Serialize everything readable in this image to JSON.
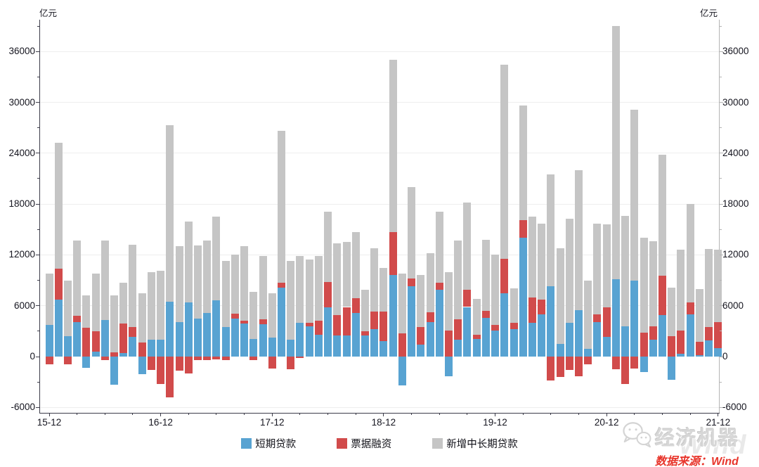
{
  "units": {
    "left": "亿元",
    "right": "亿元"
  },
  "footer": {
    "brand": "经济机器",
    "brand_icon": "wechat-bubbles-icon",
    "watermark": "Wind",
    "source": "数据来源：Wind"
  },
  "legend": [
    {
      "label": "短期贷款",
      "color": "#58a3d2"
    },
    {
      "label": "票据融资",
      "color": "#d14b4b"
    },
    {
      "label": "新增中长期贷款",
      "color": "#c5c5c5"
    }
  ],
  "chart_data": {
    "type": "bar",
    "stacked": true,
    "title": "",
    "xlabel": "",
    "ylabel": "亿元",
    "grid": true,
    "legend_position": "bottom",
    "ylim": [
      -6500,
      40000
    ],
    "y_ticks": [
      -6000,
      0,
      6000,
      12000,
      18000,
      24000,
      30000,
      36000
    ],
    "y_minor_step": 3000,
    "x_tick_labels": [
      "15-12",
      "16-12",
      "17-12",
      "18-12",
      "19-12",
      "20-12",
      "21-12"
    ],
    "x": [
      "2015-12",
      "2016-01",
      "2016-02",
      "2016-03",
      "2016-04",
      "2016-05",
      "2016-06",
      "2016-07",
      "2016-08",
      "2016-09",
      "2016-10",
      "2016-11",
      "2016-12",
      "2017-01",
      "2017-02",
      "2017-03",
      "2017-04",
      "2017-05",
      "2017-06",
      "2017-07",
      "2017-08",
      "2017-09",
      "2017-10",
      "2017-11",
      "2017-12",
      "2018-01",
      "2018-02",
      "2018-03",
      "2018-04",
      "2018-05",
      "2018-06",
      "2018-07",
      "2018-08",
      "2018-09",
      "2018-10",
      "2018-11",
      "2018-12",
      "2019-01",
      "2019-02",
      "2019-03",
      "2019-04",
      "2019-05",
      "2019-06",
      "2019-07",
      "2019-08",
      "2019-09",
      "2019-10",
      "2019-11",
      "2019-12",
      "2020-01",
      "2020-02",
      "2020-03",
      "2020-04",
      "2020-05",
      "2020-06",
      "2020-07",
      "2020-08",
      "2020-09",
      "2020-10",
      "2020-11",
      "2020-12",
      "2021-01",
      "2021-02",
      "2021-03",
      "2021-04",
      "2021-05",
      "2021-06",
      "2021-07",
      "2021-08",
      "2021-09",
      "2021-10",
      "2021-11",
      "2021-12"
    ],
    "series": [
      {
        "name": "短期贷款",
        "color": "#58a3d2",
        "values": [
          3700,
          6700,
          2400,
          4100,
          -1300,
          600,
          4300,
          -3300,
          400,
          2300,
          -2100,
          2000,
          2000,
          6500,
          4100,
          6400,
          4450,
          5150,
          6600,
          3500,
          4450,
          3900,
          2100,
          3800,
          2200,
          8100,
          2000,
          4000,
          3550,
          2600,
          5800,
          2500,
          2500,
          5150,
          2450,
          3200,
          1800,
          9650,
          -3400,
          8300,
          1450,
          4100,
          7850,
          -2300,
          2000,
          5850,
          2100,
          4600,
          3100,
          7500,
          3200,
          14000,
          3950,
          5000,
          8300,
          1500,
          4000,
          5500,
          900,
          4050,
          2300,
          9100,
          3550,
          9000,
          -1800,
          2000,
          4900,
          -2750,
          300,
          5000,
          150,
          1900,
          1000
        ]
      },
      {
        "name": "票据融资",
        "color": "#d14b4b",
        "values": [
          -900,
          3700,
          -900,
          700,
          3400,
          2400,
          -400,
          500,
          3500,
          1200,
          1650,
          -1600,
          -3250,
          -4800,
          -1700,
          -2000,
          -400,
          -450,
          -300,
          -400,
          650,
          300,
          -400,
          600,
          -1450,
          650,
          -1500,
          -200,
          450,
          1650,
          3000,
          2400,
          3350,
          1700,
          550,
          2150,
          3500,
          5050,
          2700,
          950,
          2050,
          1150,
          900,
          3100,
          2400,
          2050,
          500,
          800,
          600,
          4000,
          750,
          2100,
          3050,
          1750,
          -2800,
          -2400,
          -1600,
          -2300,
          -950,
          950,
          3500,
          -1500,
          -3200,
          -1400,
          2800,
          1600,
          4650,
          2400,
          2800,
          1400,
          1600,
          1600,
          3100
        ]
      },
      {
        "name": "新增中长期贷款",
        "color": "#c5c5c5",
        "values": [
          6100,
          14800,
          6600,
          8900,
          3800,
          6800,
          9400,
          6700,
          4800,
          9700,
          5800,
          8000,
          8150,
          20800,
          8900,
          9500,
          8700,
          8550,
          9900,
          7800,
          6950,
          8800,
          5500,
          7500,
          5300,
          17900,
          9250,
          7900,
          7450,
          7600,
          8300,
          8450,
          7650,
          7850,
          4850,
          7400,
          5150,
          20300,
          7100,
          10750,
          6150,
          6950,
          8350,
          6900,
          9300,
          10300,
          4200,
          8400,
          8300,
          22900,
          4100,
          13500,
          9550,
          8900,
          13200,
          11250,
          12300,
          16500,
          8050,
          10650,
          9800,
          29900,
          13050,
          20100,
          11200,
          10000,
          14300,
          5700,
          9550,
          11600,
          6200,
          9200,
          8500
        ]
      }
    ]
  }
}
